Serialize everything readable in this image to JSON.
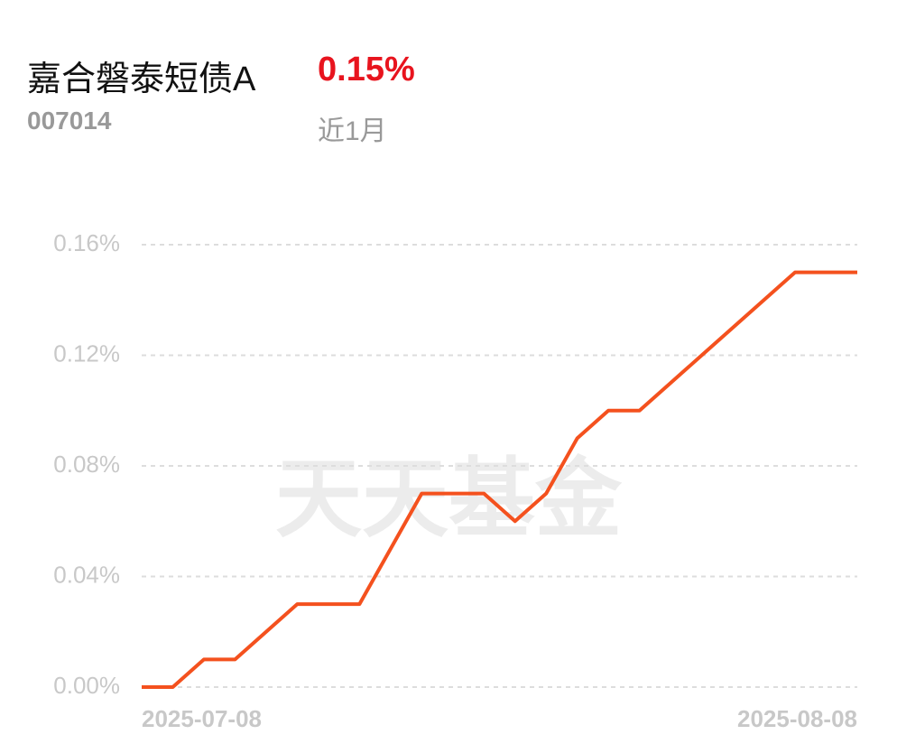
{
  "header": {
    "title": "嘉合磐泰短债A",
    "return": "0.15%",
    "code": "007014",
    "period": "近1月"
  },
  "chart_data": {
    "type": "line",
    "watermark": "天天基金",
    "categories": [
      "2025-07-08",
      null,
      null,
      null,
      null,
      null,
      null,
      null,
      null,
      null,
      null,
      null,
      null,
      null,
      null,
      null,
      null,
      null,
      null,
      null,
      null,
      null,
      null,
      "2025-08-08"
    ],
    "series": [
      {
        "name": "嘉合磐泰短债A",
        "color": "#f4511e",
        "values": [
          0,
          0,
          0.01,
          0.01,
          0.02,
          0.03,
          0.03,
          0.03,
          0.05,
          0.07,
          0.07,
          0.07,
          0.06,
          0.07,
          0.09,
          0.1,
          0.1,
          0.11,
          0.12,
          0.13,
          0.14,
          0.15,
          0.15,
          0.15
        ]
      }
    ],
    "ylim": [
      0,
      0.16
    ],
    "yticks": [
      {
        "value": 0,
        "label": "0.00%"
      },
      {
        "value": 0.04,
        "label": "0.04%"
      },
      {
        "value": 0.08,
        "label": "0.08%"
      },
      {
        "value": 0.12,
        "label": "0.12%"
      },
      {
        "value": 0.16,
        "label": "0.16%"
      }
    ],
    "grid": true
  }
}
